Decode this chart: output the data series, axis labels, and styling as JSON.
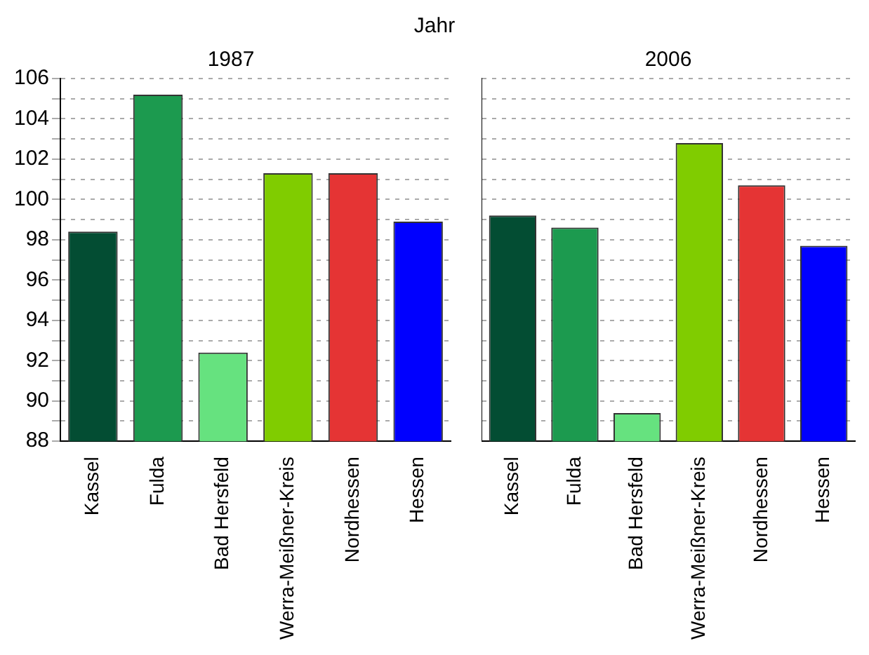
{
  "chart_data": [
    {
      "type": "bar",
      "title": "1987",
      "annotations": [
        "Jahr"
      ],
      "categories": [
        "Kassel",
        "Fulda",
        "Bad Hersfeld",
        "Werra-Meißner-Kreis",
        "Nordhessen",
        "Hessen"
      ],
      "values": [
        98.4,
        105.2,
        92.4,
        101.3,
        101.3,
        98.9
      ],
      "colors": [
        "#034d33",
        "#1c9a4f",
        "#66e27f",
        "#80cc00",
        "#e53434",
        "#0000ff"
      ],
      "ylim": [
        88,
        106
      ],
      "yticks": [
        88,
        {
          "value": 89,
          "label": null
        },
        90,
        {
          "value": 91,
          "label": null
        },
        92,
        {
          "value": 93,
          "label": null
        },
        94,
        {
          "value": 95,
          "label": null
        },
        96,
        {
          "value": 97,
          "label": null
        },
        98,
        {
          "value": 99,
          "label": null
        },
        100,
        {
          "value": 101,
          "label": null
        },
        102,
        {
          "value": 103,
          "label": null
        },
        104,
        {
          "value": 105,
          "label": null
        },
        106
      ],
      "grid": "y"
    },
    {
      "type": "bar",
      "title": "2006",
      "categories": [
        "Kassel",
        "Fulda",
        "Bad Hersfeld",
        "Werra-Meißner-Kreis",
        "Nordhessen",
        "Hessen"
      ],
      "values": [
        99.2,
        98.6,
        89.4,
        102.8,
        100.7,
        97.7
      ],
      "colors": [
        "#034d33",
        "#1c9a4f",
        "#66e27f",
        "#80cc00",
        "#e53434",
        "#0000ff"
      ],
      "ylim": [
        88,
        106
      ],
      "yticks": [
        88,
        {
          "value": 89,
          "label": null
        },
        90,
        {
          "value": 91,
          "label": null
        },
        92,
        {
          "value": 93,
          "label": null
        },
        94,
        {
          "value": 95,
          "label": null
        },
        96,
        {
          "value": 97,
          "label": null
        },
        98,
        {
          "value": 99,
          "label": null
        },
        100,
        {
          "value": 101,
          "label": null
        },
        102,
        {
          "value": 103,
          "label": null
        },
        104,
        {
          "value": 105,
          "label": null
        },
        106
      ],
      "grid": "y",
      "tick_labels": "x"
    }
  ]
}
